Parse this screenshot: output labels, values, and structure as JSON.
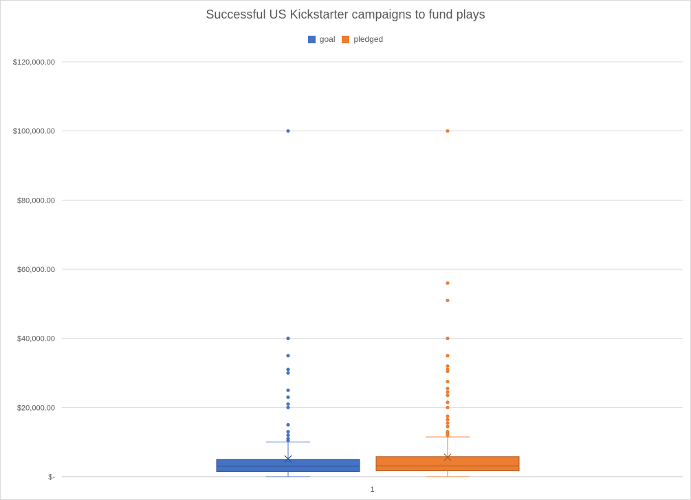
{
  "chart_data": {
    "type": "box",
    "title": "Successful US Kickstarter campaigns to fund plays",
    "xlabel": "",
    "ylabel": "",
    "categories": [
      "1"
    ],
    "ylim": [
      0,
      120000
    ],
    "yticks": [
      0,
      20000,
      40000,
      60000,
      80000,
      100000,
      120000
    ],
    "ytick_labels": [
      "$-",
      "$20,000.00",
      "$40,000.00",
      "$60,000.00",
      "$80,000.00",
      "$100,000.00",
      "$120,000.00"
    ],
    "grid": true,
    "legend_position": "top",
    "series": [
      {
        "name": "goal",
        "color": "#4472c4",
        "q1": 1500,
        "median": 3000,
        "q3": 5000,
        "mean": 5100,
        "whisker_low": 0,
        "whisker_high": 10000,
        "outliers": [
          100000,
          40000,
          35000,
          31000,
          30000,
          25000,
          23000,
          21000,
          20000,
          15000,
          13000,
          12000,
          11000,
          10500
        ]
      },
      {
        "name": "pledged",
        "color": "#ed7d31",
        "q1": 1700,
        "median": 3100,
        "q3": 5800,
        "mean": 5600,
        "whisker_low": 0,
        "whisker_high": 11500,
        "outliers": [
          100000,
          56000,
          51000,
          40000,
          35000,
          32000,
          31000,
          30500,
          27500,
          25500,
          24500,
          23500,
          21500,
          20000,
          17500,
          16500,
          15500,
          14500,
          13000,
          12500,
          12000
        ]
      }
    ]
  }
}
